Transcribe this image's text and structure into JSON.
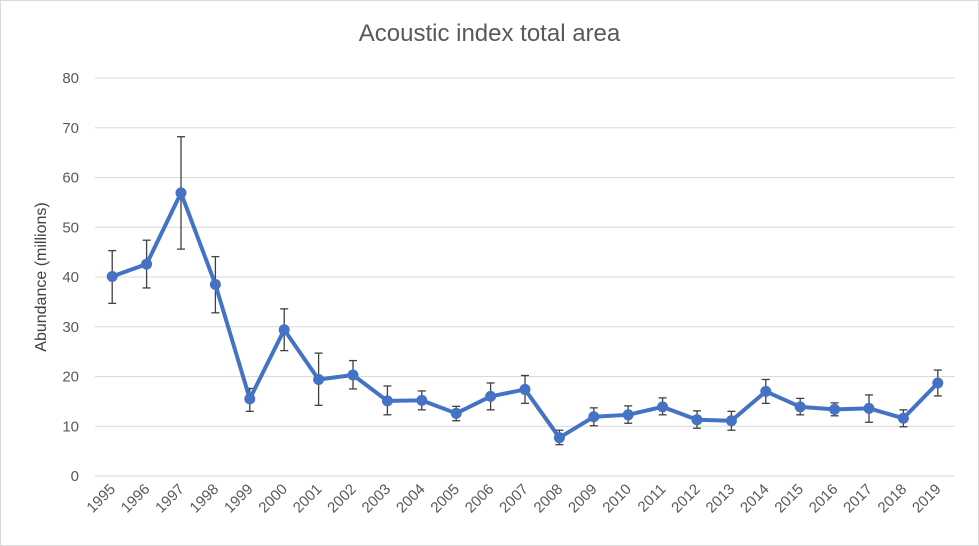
{
  "chart_data": {
    "type": "line",
    "title": "Acoustic index total area",
    "xlabel": "",
    "ylabel": "Abundance (millions)",
    "ylim": [
      0,
      80
    ],
    "yticks": [
      0,
      10,
      20,
      30,
      40,
      50,
      60,
      70,
      80
    ],
    "grid": "horizontal",
    "categories": [
      "1995",
      "1996",
      "1997",
      "1998",
      "1999",
      "2000",
      "2001",
      "2002",
      "2003",
      "2004",
      "2005",
      "2006",
      "2007",
      "2008",
      "2009",
      "2010",
      "2011",
      "2012",
      "2013",
      "2014",
      "2015",
      "2016",
      "2017",
      "2018",
      "2019"
    ],
    "series": [
      {
        "values": [
          40.1,
          42.6,
          56.9,
          38.5,
          15.5,
          29.4,
          19.4,
          20.3,
          15.1,
          15.2,
          12.6,
          16.0,
          17.4,
          7.7,
          11.9,
          12.3,
          13.9,
          11.3,
          11.1,
          17.0,
          13.9,
          13.4,
          13.6,
          11.6,
          18.7
        ],
        "error_low": [
          34.7,
          37.8,
          45.6,
          32.8,
          13.0,
          25.2,
          14.2,
          17.5,
          12.3,
          13.3,
          11.1,
          13.3,
          14.6,
          6.3,
          10.1,
          10.6,
          12.3,
          9.6,
          9.2,
          14.6,
          12.3,
          12.1,
          10.8,
          9.9,
          16.1
        ],
        "error_high": [
          45.3,
          47.4,
          68.2,
          44.1,
          17.6,
          33.6,
          24.7,
          23.2,
          18.1,
          17.1,
          14.0,
          18.7,
          20.2,
          9.2,
          13.7,
          14.1,
          15.7,
          13.1,
          13.0,
          19.4,
          15.6,
          14.7,
          16.3,
          13.3,
          21.3
        ],
        "color": "#4472c4"
      }
    ],
    "colors": {
      "line": "#4472c4",
      "gridline": "#d9d9d9",
      "error_bar": "#404040",
      "text": "#595959"
    }
  }
}
